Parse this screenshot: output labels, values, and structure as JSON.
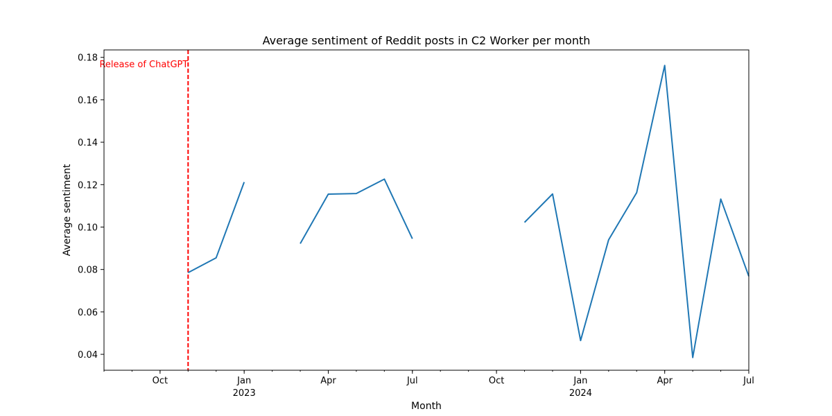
{
  "chart_data": {
    "type": "line",
    "title": "Average sentiment of Reddit posts in C2 Worker per month",
    "xlabel": "Month",
    "ylabel": "Average sentiment",
    "ylim": [
      0.0325,
      0.1835
    ],
    "xlim": [
      "2022-08",
      "2024-07"
    ],
    "yticks": [
      "0.04",
      "0.06",
      "0.08",
      "0.10",
      "0.12",
      "0.14",
      "0.16",
      "0.18"
    ],
    "xticks": [
      {
        "month": "2022-10",
        "label": "Oct",
        "year": ""
      },
      {
        "month": "2023-01",
        "label": "Jan",
        "year": "2023"
      },
      {
        "month": "2023-04",
        "label": "Apr",
        "year": ""
      },
      {
        "month": "2023-07",
        "label": "Jul",
        "year": ""
      },
      {
        "month": "2023-10",
        "label": "Oct",
        "year": ""
      },
      {
        "month": "2024-01",
        "label": "Jan",
        "year": "2024"
      },
      {
        "month": "2024-04",
        "label": "Apr",
        "year": ""
      },
      {
        "month": "2024-07",
        "label": "Jul",
        "year": ""
      }
    ],
    "grid": false,
    "series": [
      {
        "color": "#1f77b4",
        "x": [
          "2022-11",
          "2022-12",
          "2023-01",
          "2023-02",
          "2023-03",
          "2023-04",
          "2023-05",
          "2023-06",
          "2023-07",
          "2023-08",
          "2023-09",
          "2023-10",
          "2023-11",
          "2023-12",
          "2024-01",
          "2024-02",
          "2024-03",
          "2024-04",
          "2024-05",
          "2024-06",
          "2024-07"
        ],
        "values": [
          0.0785,
          0.0855,
          0.1212,
          null,
          0.0922,
          0.1155,
          0.1158,
          0.1226,
          0.0945,
          null,
          null,
          null,
          0.1022,
          0.1156,
          0.0465,
          0.094,
          0.1162,
          0.1762,
          0.0385,
          0.1132,
          0.0768
        ]
      }
    ],
    "annotations": [
      {
        "month": "2022-11",
        "text": "Release of ChatGPT",
        "color": "#ff0000",
        "style": "dashed vertical line"
      }
    ]
  }
}
